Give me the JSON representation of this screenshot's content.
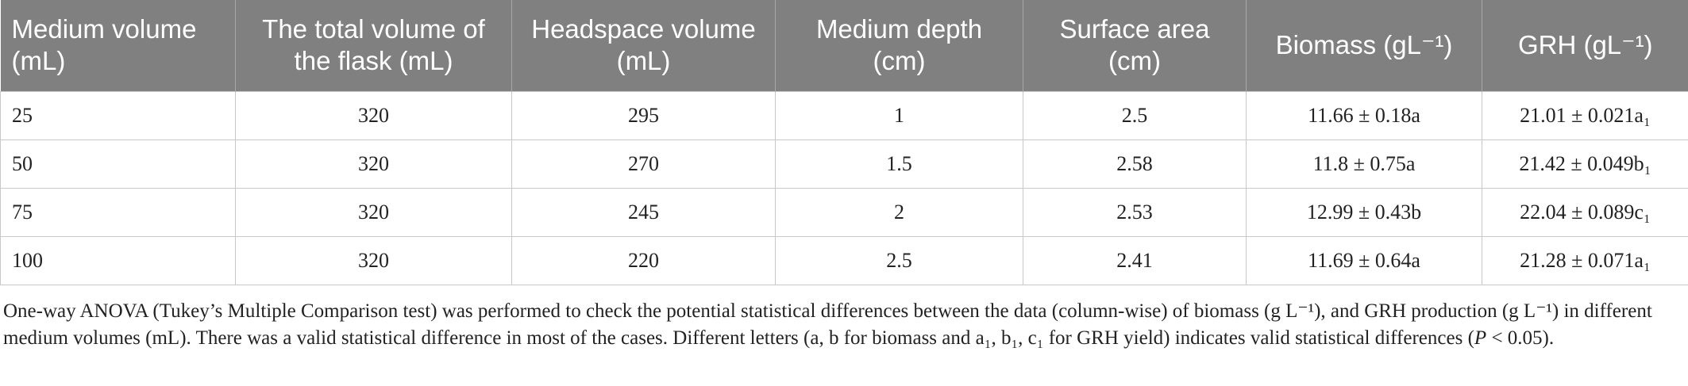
{
  "table": {
    "header": [
      "Medium volume (mL)",
      "The total volume of the flask (mL)",
      "Headspace volume (mL)",
      "Medium depth (cm)",
      "Surface area (cm)",
      "Biomass (gL⁻¹)",
      "GRH (gL⁻¹)"
    ],
    "rows": [
      [
        "25",
        "320",
        "295",
        "1",
        "2.5",
        "11.66 ± 0.18a",
        "21.01 ± 0.021a₁"
      ],
      [
        "50",
        "320",
        "270",
        "1.5",
        "2.58",
        "11.8 ± 0.75a",
        "21.42 ± 0.049b₁"
      ],
      [
        "75",
        "320",
        "245",
        "2",
        "2.53",
        "12.99 ± 0.43b",
        "22.04 ± 0.089c₁"
      ],
      [
        "100",
        "320",
        "220",
        "2.5",
        "2.41",
        "11.69 ± 0.64a",
        "21.28 ± 0.071a₁"
      ]
    ]
  },
  "footnote": {
    "parts": [
      "One-way ANOVA (Tukey’s Multiple Comparison test) was performed to check the potential statistical differences between the data (column-wise) of biomass (g L⁻¹), and GRH production (g L⁻¹) in different medium volumes (mL). There was a valid statistical difference in most of the cases. Different letters (a, b for biomass and a₁, b₁, c₁ for GRH yield) indicates valid statistical differences (",
      "P",
      " < 0.05)."
    ]
  }
}
